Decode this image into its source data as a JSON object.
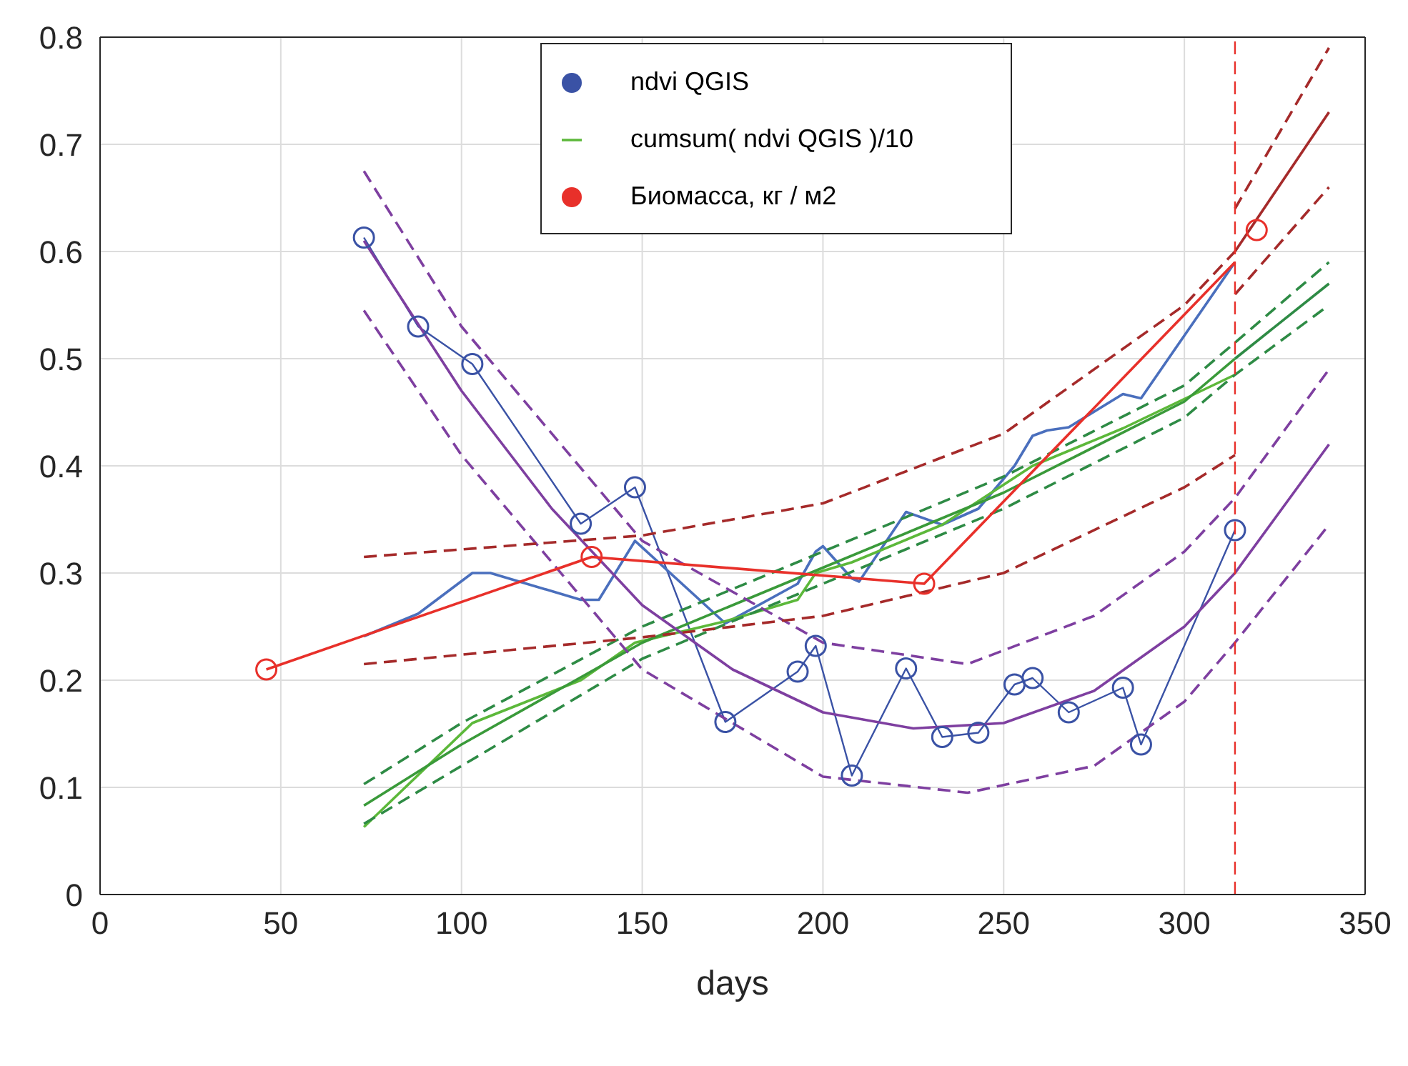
{
  "chart_data": {
    "type": "line",
    "xlabel": "days",
    "xlim": [
      0,
      350
    ],
    "xticks": [
      0,
      50,
      100,
      150,
      200,
      250,
      300,
      350
    ],
    "ylim": [
      0,
      0.8
    ],
    "yticks": [
      0,
      0.1,
      0.2,
      0.3,
      0.4,
      0.5,
      0.6,
      0.7,
      0.8
    ],
    "grid": true,
    "legend": "top",
    "series": [
      {
        "name": "ndvi QGIS",
        "marker": "circle",
        "color": "#3a52a5",
        "x": [
          73,
          88,
          103,
          133,
          148,
          173,
          193,
          198,
          208,
          223,
          233,
          243,
          253,
          258,
          268,
          283,
          288,
          314
        ],
        "values": [
          0.613,
          0.53,
          0.495,
          0.346,
          0.38,
          0.161,
          0.208,
          0.232,
          0.111,
          0.211,
          0.147,
          0.151,
          0.196,
          0.202,
          0.17,
          0.193,
          0.14,
          0.34
        ]
      },
      {
        "color": "#4a6fbd",
        "x": [
          73,
          88,
          103,
          108,
          133,
          138,
          148,
          173,
          193,
          198,
          200,
          208,
          210,
          223,
          233,
          243,
          253,
          258,
          262,
          268,
          283,
          288,
          314
        ],
        "values": [
          0.241,
          0.262,
          0.3,
          0.3,
          0.275,
          0.275,
          0.33,
          0.253,
          0.29,
          0.32,
          0.325,
          0.295,
          0.292,
          0.357,
          0.345,
          0.36,
          0.4,
          0.428,
          0.433,
          0.436,
          0.467,
          0.463,
          0.59
        ]
      },
      {
        "name": "cumsum( ndvi QGIS )/10",
        "color": "#5cb83a",
        "x": [
          73,
          103,
          133,
          148,
          173,
          193,
          198,
          208,
          233,
          258,
          283,
          314
        ],
        "values": [
          0.063,
          0.16,
          0.2,
          0.235,
          0.255,
          0.275,
          0.3,
          0.31,
          0.345,
          0.4,
          0.435,
          0.485
        ]
      },
      {
        "color": "#3a9a3a",
        "x": [
          73,
          100,
          150,
          200,
          250,
          300,
          314
        ],
        "values": [
          0.083,
          0.14,
          0.235,
          0.305,
          0.375,
          0.46,
          0.5
        ]
      },
      {
        "color": "#2e8b45",
        "line_style": "dashed",
        "x": [
          73,
          100,
          150,
          200,
          250,
          300,
          314,
          340
        ],
        "values": [
          0.103,
          0.16,
          0.25,
          0.32,
          0.39,
          0.475,
          0.515,
          0.59
        ]
      },
      {
        "color": "#2e8b45",
        "line_style": "dashed",
        "x": [
          73,
          100,
          150,
          200,
          250,
          300,
          314,
          340
        ],
        "values": [
          0.066,
          0.12,
          0.22,
          0.29,
          0.36,
          0.445,
          0.485,
          0.55
        ]
      },
      {
        "color": "#2e8b45",
        "x": [
          314,
          340
        ],
        "values": [
          0.5,
          0.57
        ]
      },
      {
        "color": "#7e3fa0",
        "x": [
          73,
          100,
          125,
          150,
          175,
          200,
          225,
          250,
          275,
          300,
          314,
          340
        ],
        "values": [
          0.61,
          0.47,
          0.36,
          0.27,
          0.21,
          0.17,
          0.155,
          0.16,
          0.19,
          0.25,
          0.3,
          0.42
        ]
      },
      {
        "color": "#7e3fa0",
        "line_style": "dashed",
        "x": [
          73,
          100,
          150,
          200,
          240,
          275,
          300,
          314,
          340
        ],
        "values": [
          0.675,
          0.53,
          0.33,
          0.235,
          0.215,
          0.26,
          0.32,
          0.37,
          0.49
        ]
      },
      {
        "color": "#7e3fa0",
        "line_style": "dashed",
        "x": [
          73,
          100,
          150,
          200,
          240,
          275,
          300,
          314,
          340
        ],
        "values": [
          0.545,
          0.41,
          0.21,
          0.11,
          0.095,
          0.12,
          0.18,
          0.235,
          0.345
        ]
      },
      {
        "name": "Биомасса, кг / м2",
        "type": "scatter",
        "marker": "circle",
        "color": "#e8302a",
        "x": [
          46,
          136,
          228,
          320
        ],
        "values": [
          0.21,
          0.315,
          0.29,
          0.62
        ]
      },
      {
        "color": "#e8302a",
        "x": [
          46,
          136,
          228,
          314
        ],
        "values": [
          0.21,
          0.315,
          0.29,
          0.59
        ]
      },
      {
        "color": "#a52a2a",
        "line_style": "dashed",
        "x": [
          73,
          150,
          200,
          250,
          300,
          314
        ],
        "values": [
          0.315,
          0.335,
          0.365,
          0.43,
          0.55,
          0.6
        ]
      },
      {
        "color": "#a52a2a",
        "line_style": "dashed",
        "x": [
          73,
          150,
          200,
          250,
          300,
          314
        ],
        "values": [
          0.215,
          0.24,
          0.26,
          0.3,
          0.38,
          0.41
        ]
      },
      {
        "color": "#a52a2a",
        "x": [
          314,
          340
        ],
        "values": [
          0.6,
          0.73
        ]
      },
      {
        "color": "#a52a2a",
        "line_style": "dashed",
        "x": [
          314,
          340
        ],
        "values": [
          0.64,
          0.79
        ]
      },
      {
        "color": "#a52a2a",
        "line_style": "dashed",
        "x": [
          314,
          340
        ],
        "values": [
          0.56,
          0.66
        ]
      }
    ],
    "ref_lines": [
      {
        "axis": "x",
        "value": 314,
        "color": "#e8302a",
        "line_style": "dashed"
      }
    ]
  }
}
